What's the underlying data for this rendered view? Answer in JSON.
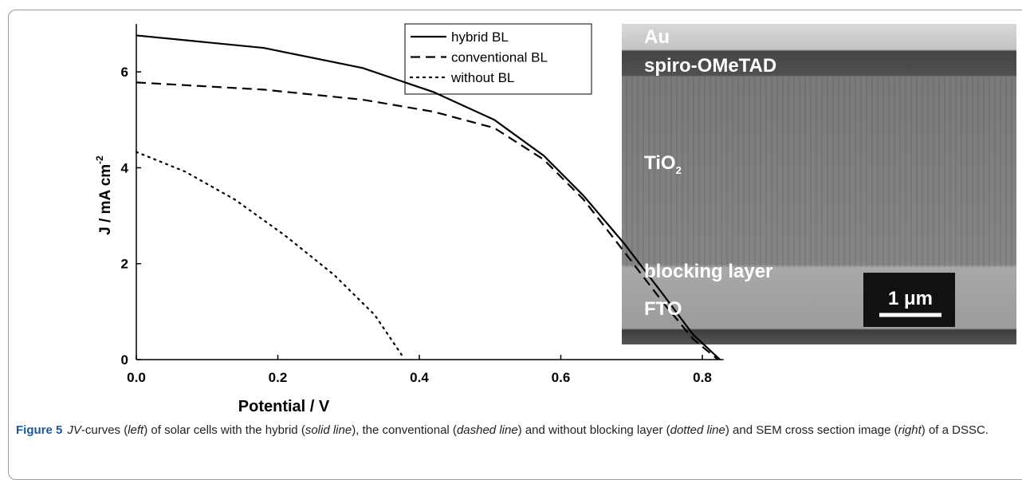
{
  "chart_data": {
    "type": "line",
    "x_label": "Potential / V",
    "y_label": "J / mA cm",
    "y_label_sup": "-2",
    "xlim": [
      0,
      0.83
    ],
    "ylim": [
      0,
      7
    ],
    "xticks": [
      {
        "value": 0,
        "label": "0.0"
      },
      0.2,
      0.4,
      0.6,
      0.8
    ],
    "yticks": [
      0,
      2,
      4,
      6
    ],
    "legend": "top-right",
    "series": [
      {
        "name": "hybrid BL",
        "color": "#000000",
        "style": "solid",
        "x": [
          0,
          0.18,
          0.32,
          0.42,
          0.506,
          0.576,
          0.632,
          0.689,
          0.745,
          0.787,
          0.825
        ],
        "values": [
          6.76,
          6.5,
          6.08,
          5.58,
          5.0,
          4.25,
          3.42,
          2.43,
          1.35,
          0.52,
          0
        ]
      },
      {
        "name": "conventional BL",
        "color": "#000000",
        "style": "dashed",
        "x": [
          0,
          0.18,
          0.32,
          0.42,
          0.506,
          0.576,
          0.632,
          0.689,
          0.745,
          0.787,
          0.822
        ],
        "values": [
          5.78,
          5.63,
          5.42,
          5.17,
          4.83,
          4.17,
          3.34,
          2.26,
          1.18,
          0.43,
          0
        ]
      },
      {
        "name": "without BL",
        "color": "#000000",
        "style": "dotted",
        "x": [
          0,
          0.069,
          0.139,
          0.21,
          0.28,
          0.337,
          0.375
        ],
        "values": [
          4.33,
          3.92,
          3.34,
          2.59,
          1.76,
          0.93,
          0.1
        ]
      }
    ]
  },
  "sem": {
    "labels": [
      {
        "text": "Au"
      },
      {
        "text": "spiro-OMeTAD"
      },
      {
        "text": "TiO",
        "sub": "2"
      },
      {
        "text": "blocking layer"
      },
      {
        "text": "FTO"
      }
    ],
    "scale_bar": "1 μm"
  },
  "caption": {
    "parts": [
      "Figure 5",
      "JV",
      "-curves (",
      "left",
      ") of solar cells with the hybrid (",
      "solid line",
      "), the conventional (",
      "dashed line",
      ") and without blocking layer (",
      "dotted line",
      ") and SEM cross section image (",
      "right",
      ") of a DSSC."
    ]
  }
}
